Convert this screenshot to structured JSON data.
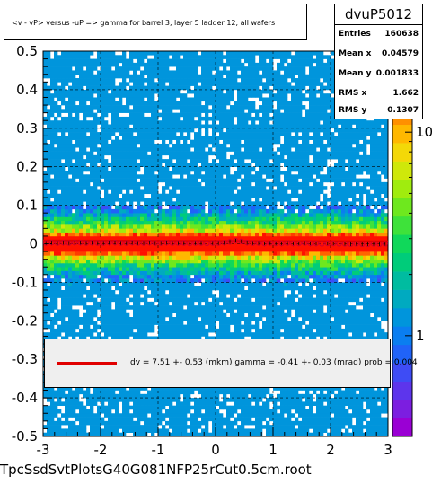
{
  "chart_data": {
    "type": "heatmap",
    "title": "<v - vP>      versus  -uP =>  gamma for barrel 3, layer 5 ladder 12, all wafers",
    "xlabel": "",
    "ylabel": "",
    "xlim": [
      -3,
      3
    ],
    "ylim": [
      -0.5,
      0.5
    ],
    "x_ticks": [
      "-3",
      "-2",
      "-1",
      "0",
      "1",
      "2",
      "3"
    ],
    "y_ticks": [
      "-0.5",
      "-0.4",
      "-0.3",
      "-0.2",
      "-0.1",
      "0",
      "0.1",
      "0.2",
      "0.3",
      "0.4",
      "0.5"
    ],
    "z_scale": "log",
    "z_ticks": [
      "1",
      "10"
    ],
    "grid": true,
    "profile_series": {
      "name": "profile",
      "x": [
        -2.95,
        -2.85,
        -2.75,
        -2.65,
        -2.55,
        -2.45,
        -2.35,
        -2.25,
        -2.15,
        -2.05,
        -1.95,
        -1.85,
        -1.75,
        -1.65,
        -1.55,
        -1.45,
        -1.35,
        -1.25,
        -1.15,
        -1.05,
        -0.95,
        -0.85,
        -0.75,
        -0.65,
        -0.55,
        -0.45,
        -0.35,
        -0.25,
        -0.15,
        -0.05,
        0.05,
        0.15,
        0.25,
        0.35,
        0.45,
        0.55,
        0.65,
        0.75,
        0.85,
        0.95,
        1.05,
        1.15,
        1.25,
        1.35,
        1.45,
        1.55,
        1.65,
        1.75,
        1.85,
        1.95,
        2.05,
        2.15,
        2.25,
        2.35,
        2.45,
        2.55,
        2.65,
        2.75,
        2.85,
        2.95
      ],
      "y": [
        0.002,
        0.003,
        0.002,
        0.003,
        0.002,
        0.003,
        0.003,
        0.002,
        0.003,
        0.002,
        0.002,
        0.003,
        0.003,
        0.002,
        0.002,
        0.003,
        0.002,
        0.002,
        0.003,
        0.002,
        0.002,
        0.003,
        0.002,
        0.002,
        0.002,
        0.001,
        0.002,
        0.002,
        0.001,
        0.002,
        0.002,
        0.003,
        0.005,
        0.008,
        0.006,
        0.003,
        0.002,
        0.002,
        0.001,
        0.002,
        0.001,
        0.001,
        0.002,
        0.001,
        0.001,
        0.002,
        0.001,
        0.001,
        0.0,
        0.001,
        0.001,
        0.0,
        0.0,
        -0.001,
        0.0,
        -0.001,
        -0.001,
        0.0,
        -0.001,
        0.0
      ]
    },
    "fit_line": {
      "color": "#e00000",
      "slope_per_unit": -0.00041,
      "intercept": 0.0075
    }
  },
  "title_text": "<v - vP>      versus  -uP =>  gamma for barrel 3, layer 5 ladder 12, all wafers",
  "stats": {
    "name": "dvuP5012",
    "rows": [
      {
        "key": "Entries",
        "value": "160638"
      },
      {
        "key": "Mean x",
        "value": "0.04579"
      },
      {
        "key": "Mean y",
        "value": "0.001833"
      },
      {
        "key": "RMS x",
        "value": "1.662"
      },
      {
        "key": "RMS y",
        "value": "0.1307"
      }
    ]
  },
  "fit_text": "dv =     7.51 +-  0.53 (mkm) gamma =    -0.41 +-  0.03 (mrad) prob = 0.004",
  "footer": "TpcSsdSvtPlotsG40G081NFP25rCut0.5cm.root"
}
